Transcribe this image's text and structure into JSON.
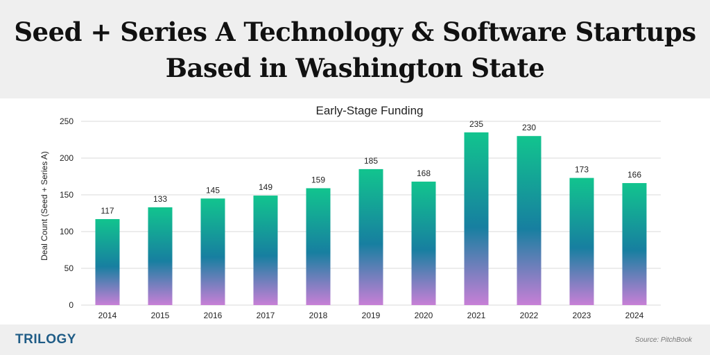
{
  "header": {
    "title_line1": "Seed + Series A Technology & Software Startups",
    "title_line2": "Based in Washington State"
  },
  "footer": {
    "brand": "TRILOGY",
    "source": "Source: PitchBook"
  },
  "colors": {
    "bar_top": "#12c48e",
    "bar_mid": "#177fa0",
    "bar_bottom": "#c77fd6",
    "gridline": "#d9d9d9",
    "header_bg": "#efefef",
    "brand": "#1f5c86"
  },
  "chart_data": {
    "type": "bar",
    "title": "Early-Stage Funding",
    "xlabel": "",
    "ylabel": "Deal Count (Seed + Series A)",
    "categories": [
      "2014",
      "2015",
      "2016",
      "2017",
      "2018",
      "2019",
      "2020",
      "2021",
      "2022",
      "2023",
      "2024"
    ],
    "values": [
      117,
      133,
      145,
      149,
      159,
      185,
      168,
      235,
      230,
      173,
      166
    ],
    "ylim": [
      0,
      250
    ],
    "yticks": [
      0,
      50,
      100,
      150,
      200,
      250
    ],
    "grid": true,
    "data_labels": true
  }
}
